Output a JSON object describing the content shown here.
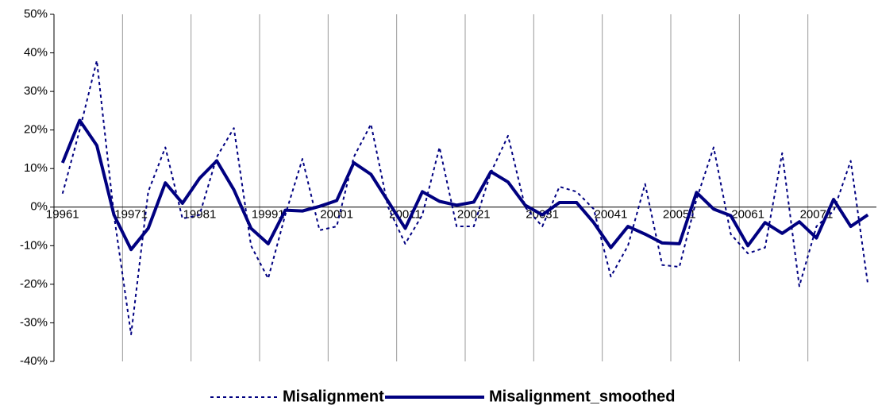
{
  "chart_data": {
    "type": "line",
    "categories": [
      "19961",
      null,
      null,
      null,
      "19971",
      null,
      null,
      null,
      "19981",
      null,
      null,
      null,
      "19991",
      null,
      null,
      null,
      "20001",
      null,
      null,
      null,
      "20011",
      null,
      null,
      null,
      "20021",
      null,
      null,
      null,
      "20031",
      null,
      null,
      null,
      "20041",
      null,
      null,
      null,
      "20051",
      null,
      null,
      null,
      "20061",
      null,
      null,
      null,
      "20071",
      null,
      null,
      null
    ],
    "series": [
      {
        "name": "Misalignment",
        "color": "#000080",
        "dash": "dotted",
        "values": [
          3.5,
          20,
          38,
          -2,
          -33,
          4,
          15.5,
          -3,
          -2,
          13,
          20.5,
          -10,
          -18.5,
          -2,
          12.5,
          -6,
          -5,
          13,
          21.5,
          0,
          -9.5,
          -2,
          15.5,
          -5,
          -5,
          9,
          18.5,
          0,
          -5,
          5.3,
          4,
          -0.5,
          -18,
          -10,
          6,
          -15,
          -15.5,
          2,
          15.5,
          -7,
          -12,
          -10.5,
          14,
          -20.5,
          -5,
          -1,
          12,
          -20
        ]
      },
      {
        "name": "Misalignment_smoothed",
        "color": "#000080",
        "dash": "solid",
        "values": [
          11.5,
          22.5,
          16,
          -2,
          -11,
          -5.5,
          6.3,
          1,
          7.5,
          12,
          4.5,
          -5.5,
          -9.5,
          -0.8,
          -1,
          0.2,
          1.7,
          11.5,
          8.5,
          1.5,
          -5.5,
          4,
          1.5,
          0.5,
          1.3,
          9.2,
          6.5,
          0.5,
          -2,
          1.2,
          1.2,
          -4,
          -10.5,
          -5,
          -7,
          -9.3,
          -9.5,
          3.8,
          -0.5,
          -2.2,
          -10,
          -4,
          -6.8,
          -3.8,
          -8,
          2,
          -5,
          -2
        ]
      }
    ],
    "ylim": [
      -40,
      50
    ],
    "yticks": [
      {
        "value": -40,
        "label": "-40%"
      },
      {
        "value": -30,
        "label": "-30%"
      },
      {
        "value": -20,
        "label": "-20%"
      },
      {
        "value": -10,
        "label": "-10%"
      },
      {
        "value": 0,
        "label": "0%"
      },
      {
        "value": 10,
        "label": "10%"
      },
      {
        "value": 20,
        "label": "20%"
      },
      {
        "value": 30,
        "label": "30%"
      },
      {
        "value": 40,
        "label": "40%"
      },
      {
        "value": 50,
        "label": "50%"
      }
    ],
    "legend": "bottom"
  }
}
